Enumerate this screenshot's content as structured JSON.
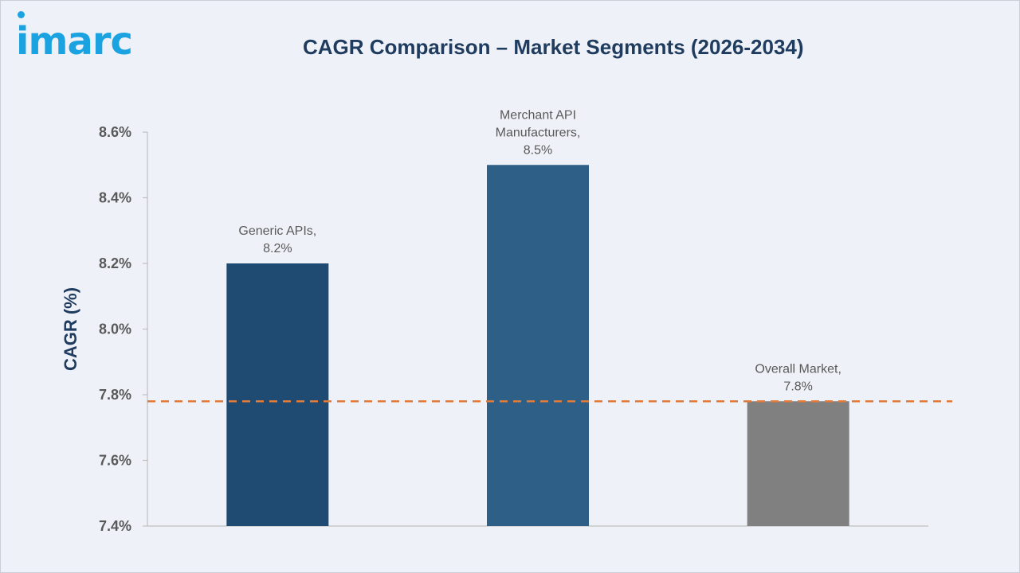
{
  "brand": {
    "logo_text": "imarc",
    "accent": "#1aa3e0"
  },
  "chart_data": {
    "type": "bar",
    "title": "CAGR Comparison – Market Segments (2026-2034)",
    "ylabel": "CAGR (%)",
    "xlabel": "",
    "ylim": [
      7.4,
      8.6
    ],
    "yticks": [
      "7.4%",
      "7.6%",
      "7.8%",
      "8.0%",
      "8.2%",
      "8.4%",
      "8.6%"
    ],
    "ytick_values": [
      7.4,
      7.6,
      7.8,
      8.0,
      8.2,
      8.4,
      8.6
    ],
    "grid": false,
    "categories": [
      "Generic APIs",
      "Merchant API Manufacturers",
      "Overall Market"
    ],
    "values": [
      8.2,
      8.5,
      7.78
    ],
    "data_labels": [
      [
        "Generic APIs,",
        "8.2%"
      ],
      [
        "Merchant API",
        "Manufacturers,",
        "8.5%"
      ],
      [
        "Overall Market,",
        "7.8%"
      ]
    ],
    "bar_colors": [
      "#1f4b73",
      "#2d5f87",
      "#808080"
    ],
    "reference_line": {
      "value": 7.78,
      "color": "#e07b39",
      "style": "dashed"
    }
  }
}
